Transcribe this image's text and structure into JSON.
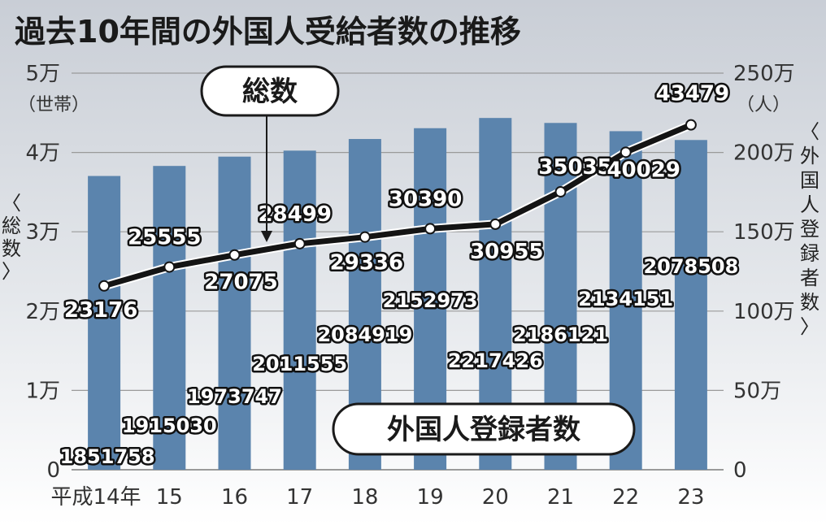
{
  "title": "過去10年間の外国人受給者数の推移",
  "left_axis": {
    "label_lines": [
      "〈",
      "総",
      "数",
      "〉"
    ],
    "ticks": [
      "0",
      "1万",
      "2万",
      "3万",
      "4万",
      "5万"
    ],
    "unit": "（世帯）"
  },
  "right_axis": {
    "label_lines": [
      "〈",
      "外",
      "国",
      "人",
      "登",
      "録",
      "者",
      "数",
      "〉"
    ],
    "ticks": [
      "0",
      "50万",
      "100万",
      "150万",
      "200万",
      "250万"
    ],
    "unit": "（人）"
  },
  "callouts": {
    "total": "総数",
    "registered": "外国人登録者数"
  },
  "colors": {
    "bar": "#5b84ad",
    "line": "#141414",
    "background_top": "#cfd3d9",
    "background_bottom": "#ffffff",
    "grid": "#9a9a9a"
  },
  "chart_data": {
    "type": "bar",
    "categories": [
      "平成14年",
      "15",
      "16",
      "17",
      "18",
      "19",
      "20",
      "21",
      "22",
      "23"
    ],
    "series": [
      {
        "name": "外国人登録者数",
        "type": "bar",
        "axis": "right",
        "values": [
          1851758,
          1915030,
          1973747,
          2011555,
          2084919,
          2152973,
          2217426,
          2186121,
          2134151,
          2078508
        ],
        "labels": [
          "1851758",
          "1915030",
          "1973747",
          "2011555",
          "2084919",
          "2152973",
          "2217426",
          "2186121",
          "2134151",
          "2078508"
        ]
      },
      {
        "name": "総数",
        "type": "line",
        "axis": "left",
        "values": [
          23176,
          25555,
          27075,
          28499,
          29336,
          30390,
          30955,
          35035,
          40029,
          43479
        ],
        "labels": [
          "23176",
          "25555",
          "27075",
          "28499",
          "29336",
          "30390",
          "30955",
          "35035",
          "40029",
          "43479"
        ]
      }
    ],
    "y_left": {
      "range": [
        0,
        50000
      ],
      "step": 10000
    },
    "y_right": {
      "range": [
        0,
        2500000
      ],
      "step": 500000
    },
    "grid": true
  }
}
